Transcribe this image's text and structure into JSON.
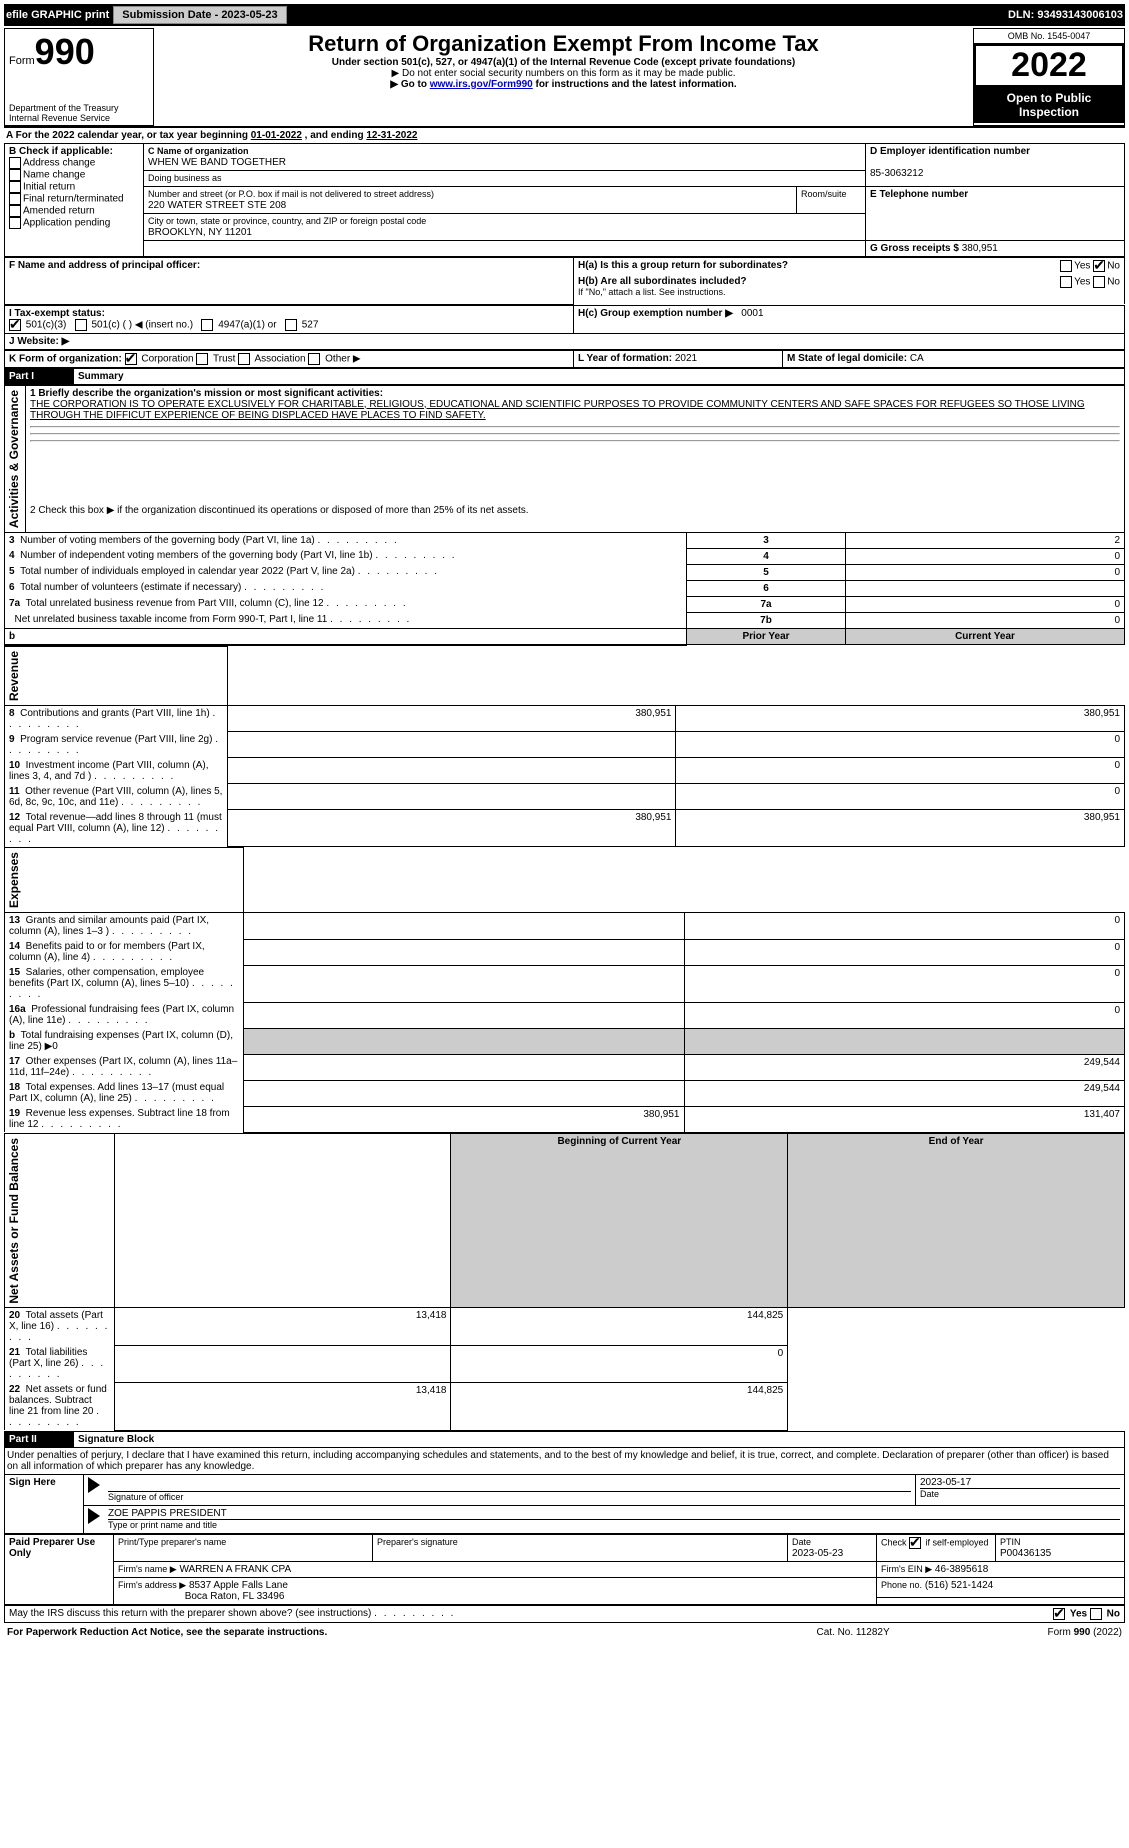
{
  "topbar": {
    "efile_label": "efile GRAPHIC print",
    "submission_label": "Submission Date - 2023-05-23",
    "dln": "DLN: 93493143006103"
  },
  "header": {
    "form_label": "Form",
    "form_number": "990",
    "dept": "Department of the Treasury\nInternal Revenue Service",
    "title": "Return of Organization Exempt From Income Tax",
    "subtitle": "Under section 501(c), 527, or 4947(a)(1) of the Internal Revenue Code (except private foundations)",
    "note1": "▶ Do not enter social security numbers on this form as it may be made public.",
    "note2_pre": "▶ Go to ",
    "note2_link": "www.irs.gov/Form990",
    "note2_post": " for instructions and the latest information.",
    "omb": "OMB No. 1545-0047",
    "year": "2022",
    "open": "Open to Public Inspection"
  },
  "a_line": {
    "text_pre": "A For the 2022 calendar year, or tax year beginning ",
    "begin": "01-01-2022",
    "mid": " , and ending ",
    "end": "12-31-2022"
  },
  "b": {
    "label": "B Check if applicable:",
    "addr": "Address change",
    "name": "Name change",
    "init": "Initial return",
    "final": "Final return/terminated",
    "amend": "Amended return",
    "app": "Application pending"
  },
  "c": {
    "label": "C Name of organization",
    "org": "WHEN WE BAND TOGETHER",
    "dba_label": "Doing business as",
    "dba": "",
    "street_label": "Number and street (or P.O. box if mail is not delivered to street address)",
    "room_label": "Room/suite",
    "street": "220 WATER STREET STE 208",
    "city_label": "City or town, state or province, country, and ZIP or foreign postal code",
    "city": "BROOKLYN, NY  11201"
  },
  "d": {
    "label": "D Employer identification number",
    "value": "85-3063212"
  },
  "e": {
    "label": "E Telephone number",
    "value": ""
  },
  "g": {
    "label": "G Gross receipts $",
    "value": "380,951"
  },
  "f": {
    "label": "F  Name and address of principal officer:",
    "value": ""
  },
  "h": {
    "a_label": "H(a)  Is this a group return for subordinates?",
    "yes": "Yes",
    "no": "No",
    "b_label": "H(b)  Are all subordinates included?",
    "b_note": "If \"No,\" attach a list. See instructions.",
    "c_label": "H(c)  Group exemption number ▶",
    "c_value": "0001"
  },
  "i": {
    "label": "I   Tax-exempt status:",
    "c3": "501(c)(3)",
    "c": "501(c) (   ) ◀ (insert no.)",
    "a1": "4947(a)(1) or",
    "s527": "527"
  },
  "j": {
    "label": "J   Website: ▶",
    "value": ""
  },
  "k": {
    "label": "K Form of organization:",
    "corp": "Corporation",
    "trust": "Trust",
    "assoc": "Association",
    "other": "Other ▶"
  },
  "l": {
    "label": "L Year of formation:",
    "value": "2021"
  },
  "m": {
    "label": "M State of legal domicile:",
    "value": "CA"
  },
  "part1": {
    "title": "Part I",
    "name": "Summary",
    "q1": "1   Briefly describe the organization's mission or most significant activities:",
    "mission": "THE CORPORATION IS TO OPERATE EXCLUSIVELY FOR CHARITABLE, RELIGIOUS, EDUCATIONAL AND SCIENTIFIC PURPOSES TO PROVIDE COMMUNITY CENTERS AND SAFE SPACES FOR REFUGEES SO THOSE LIVING THROUGH THE DIFFICUT EXPERIENCE OF BEING DISPLACED HAVE PLACES TO FIND SAFETY.",
    "q2": "2   Check this box ▶      if the organization discontinued its operations or disposed of more than 25% of its net assets.",
    "lines_ag": [
      {
        "n": "3",
        "t": "Number of voting members of the governing body (Part VI, line 1a)",
        "r": "3",
        "v": "2"
      },
      {
        "n": "4",
        "t": "Number of independent voting members of the governing body (Part VI, line 1b)",
        "r": "4",
        "v": "0"
      },
      {
        "n": "5",
        "t": "Total number of individuals employed in calendar year 2022 (Part V, line 2a)",
        "r": "5",
        "v": "0"
      },
      {
        "n": "6",
        "t": "Total number of volunteers (estimate if necessary)",
        "r": "6",
        "v": ""
      },
      {
        "n": "7a",
        "t": "Total unrelated business revenue from Part VIII, column (C), line 12",
        "r": "7a",
        "v": "0"
      },
      {
        "n": "",
        "t": "Net unrelated business taxable income from Form 990-T, Part I, line 11",
        "r": "7b",
        "v": "0"
      }
    ],
    "col_prior": "Prior Year",
    "col_curr": "Current Year",
    "rev": [
      {
        "n": "8",
        "t": "Contributions and grants (Part VIII, line 1h)",
        "p": "380,951",
        "c": "380,951"
      },
      {
        "n": "9",
        "t": "Program service revenue (Part VIII, line 2g)",
        "p": "",
        "c": "0"
      },
      {
        "n": "10",
        "t": "Investment income (Part VIII, column (A), lines 3, 4, and 7d )",
        "p": "",
        "c": "0"
      },
      {
        "n": "11",
        "t": "Other revenue (Part VIII, column (A), lines 5, 6d, 8c, 9c, 10c, and 11e)",
        "p": "",
        "c": "0"
      },
      {
        "n": "12",
        "t": "Total revenue—add lines 8 through 11 (must equal Part VIII, column (A), line 12)",
        "p": "380,951",
        "c": "380,951"
      }
    ],
    "exp": [
      {
        "n": "13",
        "t": "Grants and similar amounts paid (Part IX, column (A), lines 1–3 )",
        "p": "",
        "c": "0"
      },
      {
        "n": "14",
        "t": "Benefits paid to or for members (Part IX, column (A), line 4)",
        "p": "",
        "c": "0"
      },
      {
        "n": "15",
        "t": "Salaries, other compensation, employee benefits (Part IX, column (A), lines 5–10)",
        "p": "",
        "c": "0"
      },
      {
        "n": "16a",
        "t": "Professional fundraising fees (Part IX, column (A), line 11e)",
        "p": "",
        "c": "0"
      },
      {
        "n": "b",
        "t": "Total fundraising expenses (Part IX, column (D), line 25) ▶0",
        "p": "GRAY",
        "c": "GRAY"
      },
      {
        "n": "17",
        "t": "Other expenses (Part IX, column (A), lines 11a–11d, 11f–24e)",
        "p": "",
        "c": "249,544"
      },
      {
        "n": "18",
        "t": "Total expenses. Add lines 13–17 (must equal Part IX, column (A), line 25)",
        "p": "",
        "c": "249,544"
      },
      {
        "n": "19",
        "t": "Revenue less expenses. Subtract line 18 from line 12",
        "p": "380,951",
        "c": "131,407"
      }
    ],
    "col_begin": "Beginning of Current Year",
    "col_end": "End of Year",
    "na": [
      {
        "n": "20",
        "t": "Total assets (Part X, line 16)",
        "p": "13,418",
        "c": "144,825"
      },
      {
        "n": "21",
        "t": "Total liabilities (Part X, line 26)",
        "p": "",
        "c": "0"
      },
      {
        "n": "22",
        "t": "Net assets or fund balances. Subtract line 21 from line 20",
        "p": "13,418",
        "c": "144,825"
      }
    ],
    "side_ag": "Activities & Governance",
    "side_rev": "Revenue",
    "side_exp": "Expenses",
    "side_na": "Net Assets or Fund Balances"
  },
  "part2": {
    "title": "Part II",
    "name": "Signature Block",
    "decl": "Under penalties of perjury, I declare that I have examined this return, including accompanying schedules and statements, and to the best of my knowledge and belief, it is true, correct, and complete. Declaration of preparer (other than officer) is based on all information of which preparer has any knowledge.",
    "sign_here": "Sign Here",
    "sig_officer": "Signature of officer",
    "date": "Date",
    "date_val": "2023-05-17",
    "name_title": "ZOE PAPPIS  PRESIDENT",
    "name_title_label": "Type or print name and title",
    "paid": "Paid Preparer Use Only",
    "prep_name_label": "Print/Type preparer's name",
    "prep_sig_label": "Preparer's signature",
    "prep_date": "2023-05-23",
    "self_emp": "Check       if self-employed",
    "ptin_label": "PTIN",
    "ptin": "P00436135",
    "firm_name_label": "Firm's name    ▶",
    "firm_name": "WARREN A FRANK CPA",
    "firm_ein_label": "Firm's EIN ▶",
    "firm_ein": "46-3895618",
    "firm_addr_label": "Firm's address ▶",
    "firm_addr1": "8537 Apple Falls Lane",
    "firm_addr2": "Boca Raton, FL  33496",
    "phone_label": "Phone no.",
    "phone": "(516) 521-1424",
    "discuss": "May the IRS discuss this return with the preparer shown above? (see instructions)"
  },
  "footer": {
    "pra": "For Paperwork Reduction Act Notice, see the separate instructions.",
    "cat": "Cat. No. 11282Y",
    "form": "Form 990 (2022)"
  }
}
